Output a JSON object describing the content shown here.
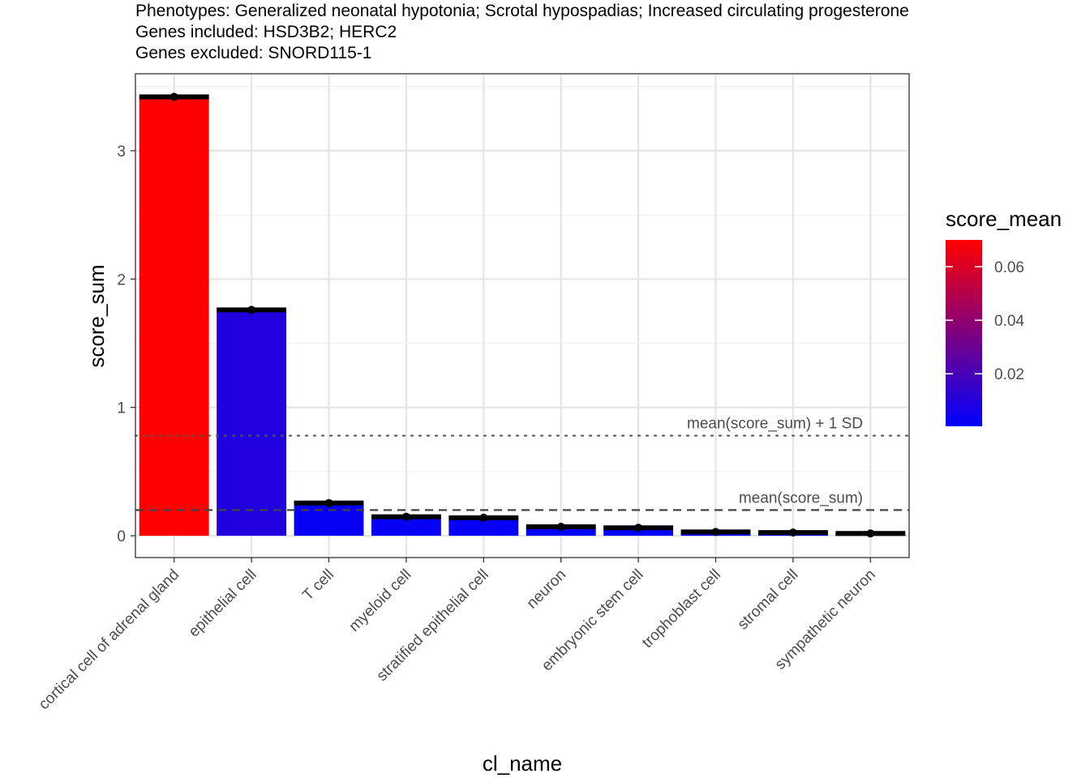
{
  "chart_data": {
    "type": "bar",
    "title_lines": [
      "Phenotypes: Generalized neonatal hypotonia; Scrotal hypospadias; Increased circulating progesterone",
      "Genes included: HSD3B2; HERC2",
      "Genes excluded: SNORD115-1"
    ],
    "xlabel": "cl_name",
    "ylabel": "score_sum",
    "categories": [
      "cortical cell of adrenal gland",
      "epithelial cell",
      "T cell",
      "myeloid cell",
      "stratified epithelial cell",
      "neuron",
      "embryonic stem cell",
      "trophoblast cell",
      "stromal cell",
      "sympathetic neuron"
    ],
    "values": [
      3.42,
      1.76,
      0.255,
      0.148,
      0.14,
      0.07,
      0.062,
      0.03,
      0.025,
      0.018
    ],
    "score_mean": [
      0.07,
      0.009,
      0.002,
      0.002,
      0.002,
      0.001,
      0.001,
      0.0005,
      0.0005,
      0.0004
    ],
    "ylim": [
      -0.17,
      3.6
    ],
    "yticks": [
      0,
      1,
      2,
      3
    ],
    "grid": true,
    "reference_lines": [
      {
        "label": "mean(score_sum)",
        "value": 0.2,
        "style": "dashed"
      },
      {
        "label": "mean(score_sum) + 1 SD",
        "value": 0.78,
        "style": "dotted"
      }
    ],
    "legend": {
      "title": "score_mean",
      "placement": "right",
      "low_color": "#0000ff",
      "high_color": "#ff0000",
      "range": [
        0.0004,
        0.07
      ],
      "ticks": [
        0.02,
        0.04,
        0.06
      ],
      "tick_labels": [
        "0.02",
        "0.04",
        "0.06"
      ]
    }
  }
}
